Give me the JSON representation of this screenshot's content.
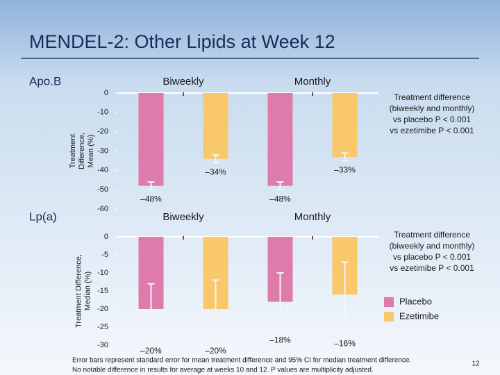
{
  "title": "MENDEL-2: Other Lipids at Week 12",
  "footnote": [
    "Error bars represent standard error for mean treatment difference and 95% CI for median treatment difference.",
    "No notable difference in results for average at weeks 10 and 12. P values are multiplicity adjusted."
  ],
  "page_number": "12",
  "chart_data": [
    {
      "type": "bar",
      "label": "Apo.B",
      "ylabel": [
        "Treatment",
        "Difference,",
        "Mean (%)"
      ],
      "categories": [
        "Biweekly",
        "Monthly"
      ],
      "ylim": [
        -60,
        0
      ],
      "yticks": [
        0,
        -10,
        -20,
        -30,
        -40,
        -50,
        -60
      ],
      "series": [
        {
          "color": "#de7bab",
          "values": [
            -48,
            -48
          ],
          "value_labels": [
            "–48%",
            "–48%"
          ],
          "ci_low": [
            -50,
            -50
          ],
          "ci_high": [
            -46,
            -46
          ]
        },
        {
          "color": "#f9c86a",
          "values": [
            -34,
            -33
          ],
          "value_labels": [
            "–34%",
            "–33%"
          ],
          "ci_low": [
            -36,
            -35
          ],
          "ci_high": [
            -32,
            -31
          ]
        }
      ],
      "annotation": [
        "Treatment difference",
        "(biweekly and monthly)",
        "vs placebo P < 0.001",
        "vs ezetimibe P < 0.001"
      ]
    },
    {
      "type": "bar",
      "label": "Lp(a)",
      "ylabel": [
        "Treatment Difference,",
        "Median (%)"
      ],
      "categories": [
        "Biweekly",
        "Monthly"
      ],
      "ylim": [
        -30,
        0
      ],
      "yticks": [
        0,
        -5,
        -10,
        -15,
        -20,
        -25,
        -30
      ],
      "series": [
        {
          "name": "Placebo",
          "color": "#de7bab",
          "values": [
            -20,
            -18
          ],
          "value_labels": [
            "–20%",
            "–18%"
          ],
          "ci_low": [
            -29,
            -26
          ],
          "ci_high": [
            -13,
            -10
          ]
        },
        {
          "name": "Ezetimibe",
          "color": "#f9c86a",
          "values": [
            -20,
            -16
          ],
          "value_labels": [
            "–20%",
            "–16%"
          ],
          "ci_low": [
            -29,
            -27
          ],
          "ci_high": [
            -12,
            -7
          ]
        }
      ],
      "annotation": [
        "Treatment difference",
        "(biweekly and monthly)",
        "vs placebo P < 0.001",
        "vs ezetimibe P < 0.001"
      ],
      "legend": "lower right"
    }
  ]
}
